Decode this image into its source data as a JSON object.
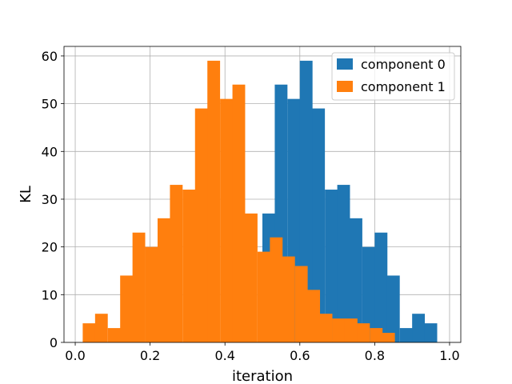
{
  "chart_data": {
    "type": "bar",
    "xlabel": "iteration",
    "ylabel": "KL",
    "xlim": [
      -0.03,
      1.03
    ],
    "ylim": [
      0,
      62
    ],
    "grid": true,
    "legend_position": "top-right",
    "bin_width": 0.0333,
    "x_ticks": [
      "0.0",
      "0.2",
      "0.4",
      "0.6",
      "0.8",
      "1.0"
    ],
    "x_tick_values": [
      0,
      0.2,
      0.4,
      0.6,
      0.8,
      1.0
    ],
    "y_ticks": [
      "0",
      "10",
      "20",
      "30",
      "40",
      "50",
      "60"
    ],
    "y_tick_values": [
      0,
      10,
      20,
      30,
      40,
      50,
      60
    ],
    "series": [
      {
        "name": "component 0",
        "color": "#1f77b4",
        "bins": [
          {
            "x0": 0.5,
            "count": 27
          },
          {
            "x0": 0.533,
            "count": 54
          },
          {
            "x0": 0.567,
            "count": 51
          },
          {
            "x0": 0.6,
            "count": 59
          },
          {
            "x0": 0.633,
            "count": 49
          },
          {
            "x0": 0.667,
            "count": 32
          },
          {
            "x0": 0.7,
            "count": 33
          },
          {
            "x0": 0.733,
            "count": 26
          },
          {
            "x0": 0.767,
            "count": 20
          },
          {
            "x0": 0.8,
            "count": 23
          },
          {
            "x0": 0.833,
            "count": 14
          },
          {
            "x0": 0.867,
            "count": 3
          },
          {
            "x0": 0.9,
            "count": 6
          },
          {
            "x0": 0.933,
            "count": 4
          }
        ]
      },
      {
        "name": "component 1",
        "color": "#ff7f0e",
        "bins": [
          {
            "x0": 0.02,
            "count": 4
          },
          {
            "x0": 0.053,
            "count": 6
          },
          {
            "x0": 0.087,
            "count": 3
          },
          {
            "x0": 0.12,
            "count": 14
          },
          {
            "x0": 0.153,
            "count": 23
          },
          {
            "x0": 0.187,
            "count": 20
          },
          {
            "x0": 0.22,
            "count": 26
          },
          {
            "x0": 0.253,
            "count": 33
          },
          {
            "x0": 0.287,
            "count": 32
          },
          {
            "x0": 0.32,
            "count": 49
          },
          {
            "x0": 0.353,
            "count": 59
          },
          {
            "x0": 0.387,
            "count": 51
          },
          {
            "x0": 0.42,
            "count": 54
          },
          {
            "x0": 0.453,
            "count": 27
          },
          {
            "x0": 0.487,
            "count": 19
          },
          {
            "x0": 0.52,
            "count": 22
          },
          {
            "x0": 0.553,
            "count": 18
          },
          {
            "x0": 0.587,
            "count": 16
          },
          {
            "x0": 0.62,
            "count": 11
          },
          {
            "x0": 0.653,
            "count": 6
          },
          {
            "x0": 0.687,
            "count": 5
          },
          {
            "x0": 0.72,
            "count": 5
          },
          {
            "x0": 0.753,
            "count": 4
          },
          {
            "x0": 0.787,
            "count": 3
          },
          {
            "x0": 0.82,
            "count": 2
          }
        ]
      }
    ]
  }
}
